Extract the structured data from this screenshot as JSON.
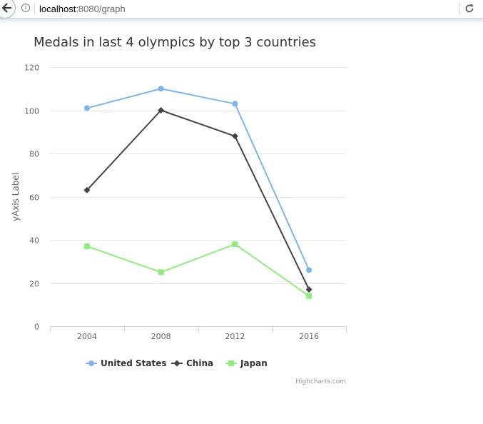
{
  "browser": {
    "url_host": "localhost",
    "url_path": ":8080/graph"
  },
  "credit": "Highcharts.com",
  "chart_data": {
    "type": "line",
    "title": "Medals in last 4 olympics by top 3 countries",
    "xlabel": "",
    "ylabel": "yAxis Label",
    "categories": [
      "2004",
      "2008",
      "2012",
      "2016"
    ],
    "ylim": [
      0,
      120
    ],
    "yticks": [
      0,
      20,
      40,
      60,
      80,
      100,
      120
    ],
    "grid": true,
    "legend_position": "bottom-center",
    "series": [
      {
        "name": "United States",
        "values": [
          101,
          110,
          103,
          26
        ],
        "color": "#7cb5ec",
        "marker": "circle"
      },
      {
        "name": "China",
        "values": [
          63,
          100,
          88,
          17
        ],
        "color": "#434348",
        "marker": "diamond"
      },
      {
        "name": "Japan",
        "values": [
          37,
          25,
          38,
          14
        ],
        "color": "#90ed7d",
        "marker": "square"
      }
    ]
  }
}
